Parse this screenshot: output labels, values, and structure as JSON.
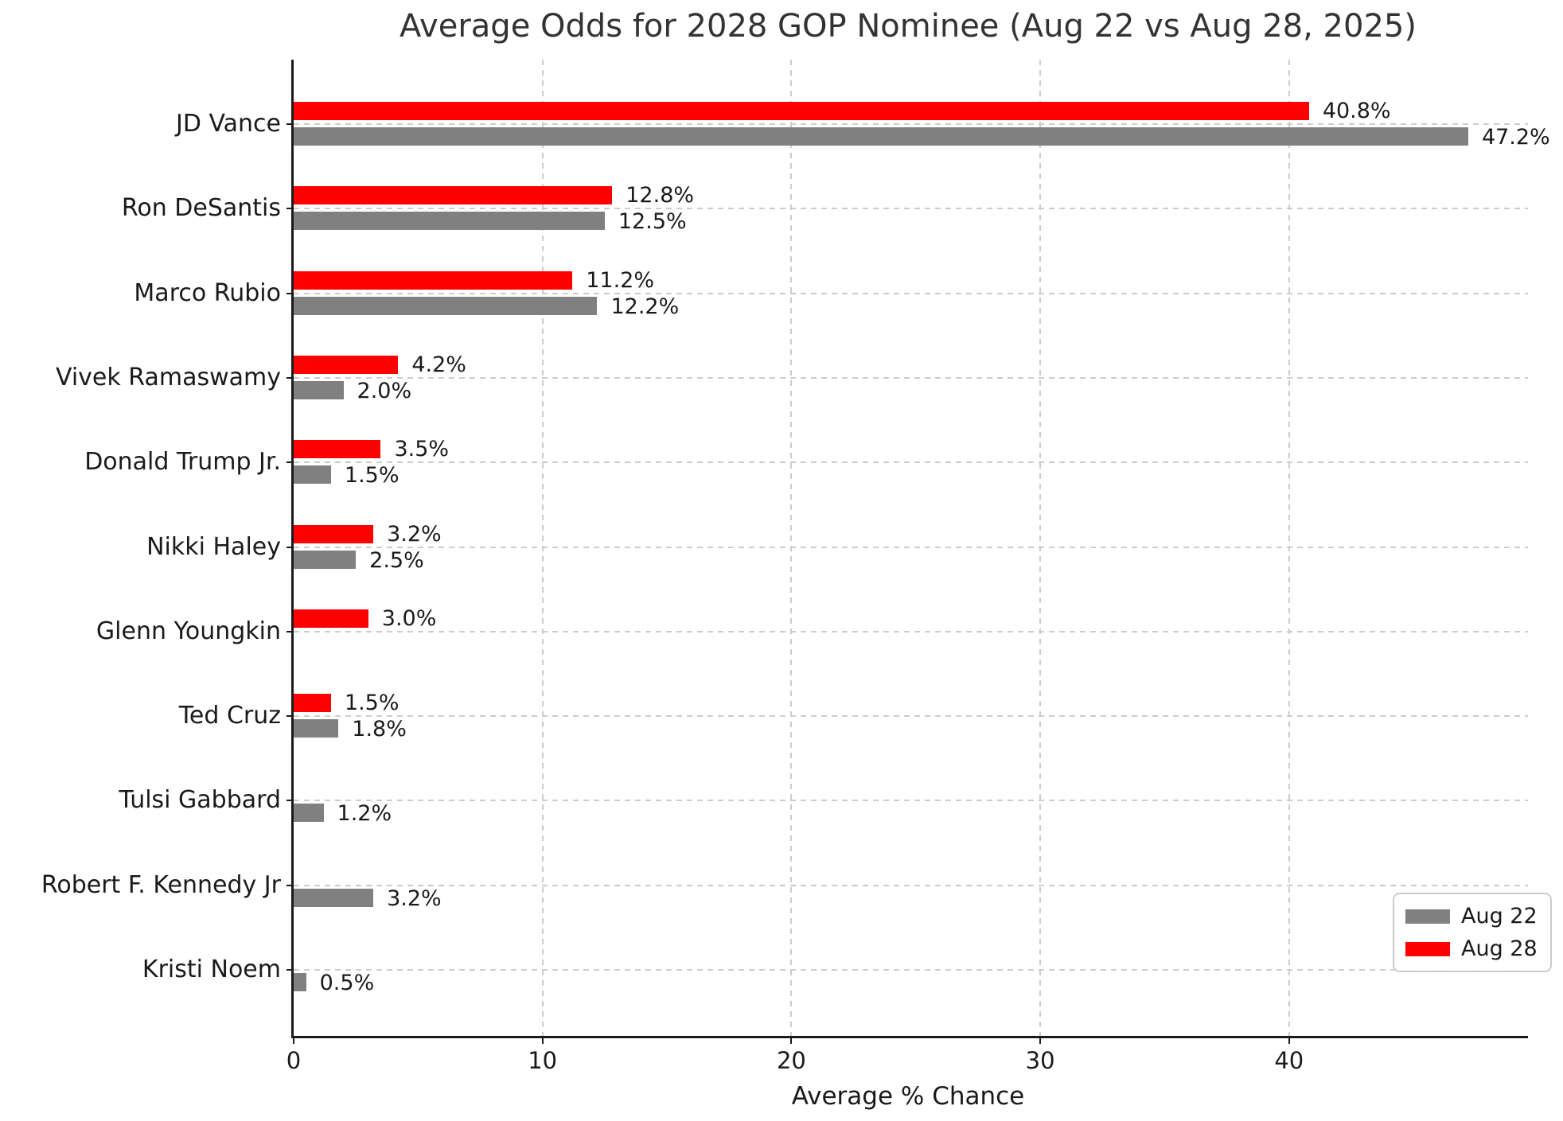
{
  "chart_data": {
    "type": "bar",
    "orientation": "horizontal",
    "title": "Average Odds for 2028 GOP Nominee (Aug 22 vs Aug 28, 2025)",
    "xlabel": "Average % Chance",
    "categories": [
      "JD Vance",
      "Ron DeSantis",
      "Marco Rubio",
      "Vivek Ramaswamy",
      "Donald Trump Jr.",
      "Nikki Haley",
      "Glenn Youngkin",
      "Ted Cruz",
      "Tulsi Gabbard",
      "Robert F. Kennedy Jr",
      "Kristi Noem"
    ],
    "series": [
      {
        "name": "Aug 22",
        "color": "#808080",
        "values": [
          47.2,
          12.5,
          12.2,
          2.0,
          1.5,
          2.5,
          0,
          1.8,
          1.2,
          3.2,
          0.5
        ],
        "labels": [
          "47.2%",
          "12.5%",
          "12.2%",
          "2.0%",
          "1.5%",
          "2.5%",
          "",
          "1.8%",
          "1.2%",
          "3.2%",
          "0.5%"
        ]
      },
      {
        "name": "Aug 28",
        "color": "#ff0000",
        "values": [
          40.8,
          12.8,
          11.2,
          4.2,
          3.5,
          3.2,
          3.0,
          1.5,
          0,
          0,
          0
        ],
        "labels": [
          "40.8%",
          "12.8%",
          "11.2%",
          "4.2%",
          "3.5%",
          "3.2%",
          "3.0%",
          "1.5%",
          "",
          "",
          ""
        ]
      }
    ],
    "xticks": [
      0,
      10,
      20,
      30,
      40
    ],
    "xtick_labels": [
      "0",
      "10",
      "20",
      "30",
      "40"
    ],
    "xlim": [
      0,
      49.6
    ],
    "grid": true,
    "legend": {
      "position": "lower right",
      "entries": [
        {
          "label": "Aug 22",
          "color": "#808080"
        },
        {
          "label": "Aug 28",
          "color": "#ff0000"
        }
      ]
    }
  },
  "colors": {
    "bar_aug22": "#808080",
    "bar_aug28": "#ff0000",
    "grid": "#cccccc",
    "axis": "#1a1a1a",
    "title_text": "#333333"
  }
}
